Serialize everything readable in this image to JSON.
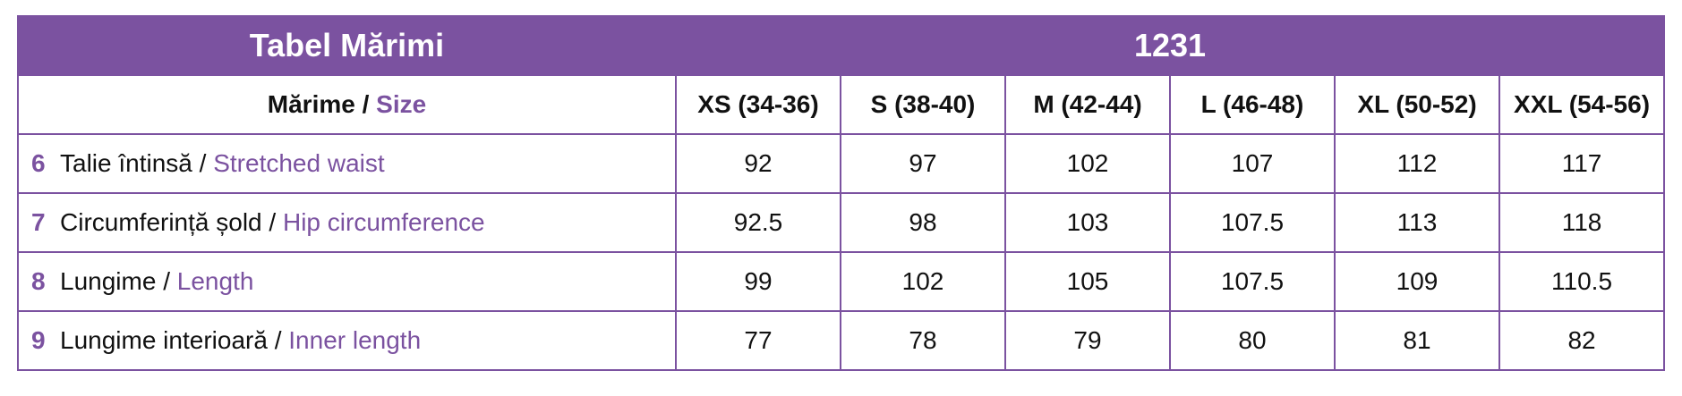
{
  "header": {
    "title": "Tabel Mărimi",
    "model": "1231"
  },
  "columns": {
    "label_ro": "Mărime",
    "separator": "/",
    "label_en": "Size",
    "sizes": [
      "XS (34-36)",
      "S (38-40)",
      "M (42-44)",
      "L (46-48)",
      "XL (50-52)",
      "XXL (54-56)"
    ]
  },
  "rows": [
    {
      "number": "6",
      "label_ro": "Talie întinsă",
      "label_en": "Stretched waist",
      "values": [
        92,
        97,
        102,
        107,
        112,
        117
      ]
    },
    {
      "number": "7",
      "label_ro": "Circumferință șold",
      "label_en": "Hip circumference",
      "values": [
        92.5,
        98,
        103,
        107.5,
        113,
        118
      ]
    },
    {
      "number": "8",
      "label_ro": "Lungime",
      "label_en": "Length",
      "values": [
        99,
        102,
        105,
        107.5,
        109,
        110.5
      ]
    },
    {
      "number": "9",
      "label_ro": "Lungime interioară",
      "label_en": "Inner length",
      "values": [
        77,
        78,
        79,
        80,
        81,
        82
      ]
    }
  ]
}
